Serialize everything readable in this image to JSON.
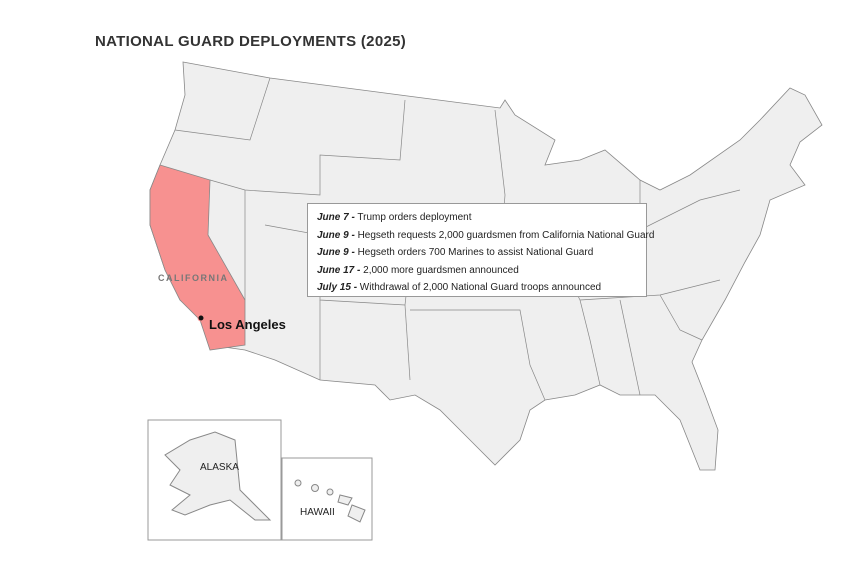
{
  "title": "NATIONAL GUARD DEPLOYMENTS (2025)",
  "highlight_color": "#f79190",
  "state_color": "#efefef",
  "highlighted_state": "CALIFORNIA",
  "city": "Los Angeles",
  "insets": {
    "alaska": "ALASKA",
    "hawaii": "HAWAII"
  },
  "timeline": [
    {
      "date": "June 7 -",
      "text": " Trump orders deployment"
    },
    {
      "date": "June 9 -",
      "text": " Hegseth requests 2,000 guardsmen from California National Guard"
    },
    {
      "date": "June 9 -",
      "text": " Hegseth orders 700 Marines to assist National Guard"
    },
    {
      "date": "June 17 -",
      "text": " 2,000 more guardsmen announced"
    },
    {
      "date": "July 15 -",
      "text": " Withdrawal of 2,000 National Guard troops announced"
    }
  ]
}
